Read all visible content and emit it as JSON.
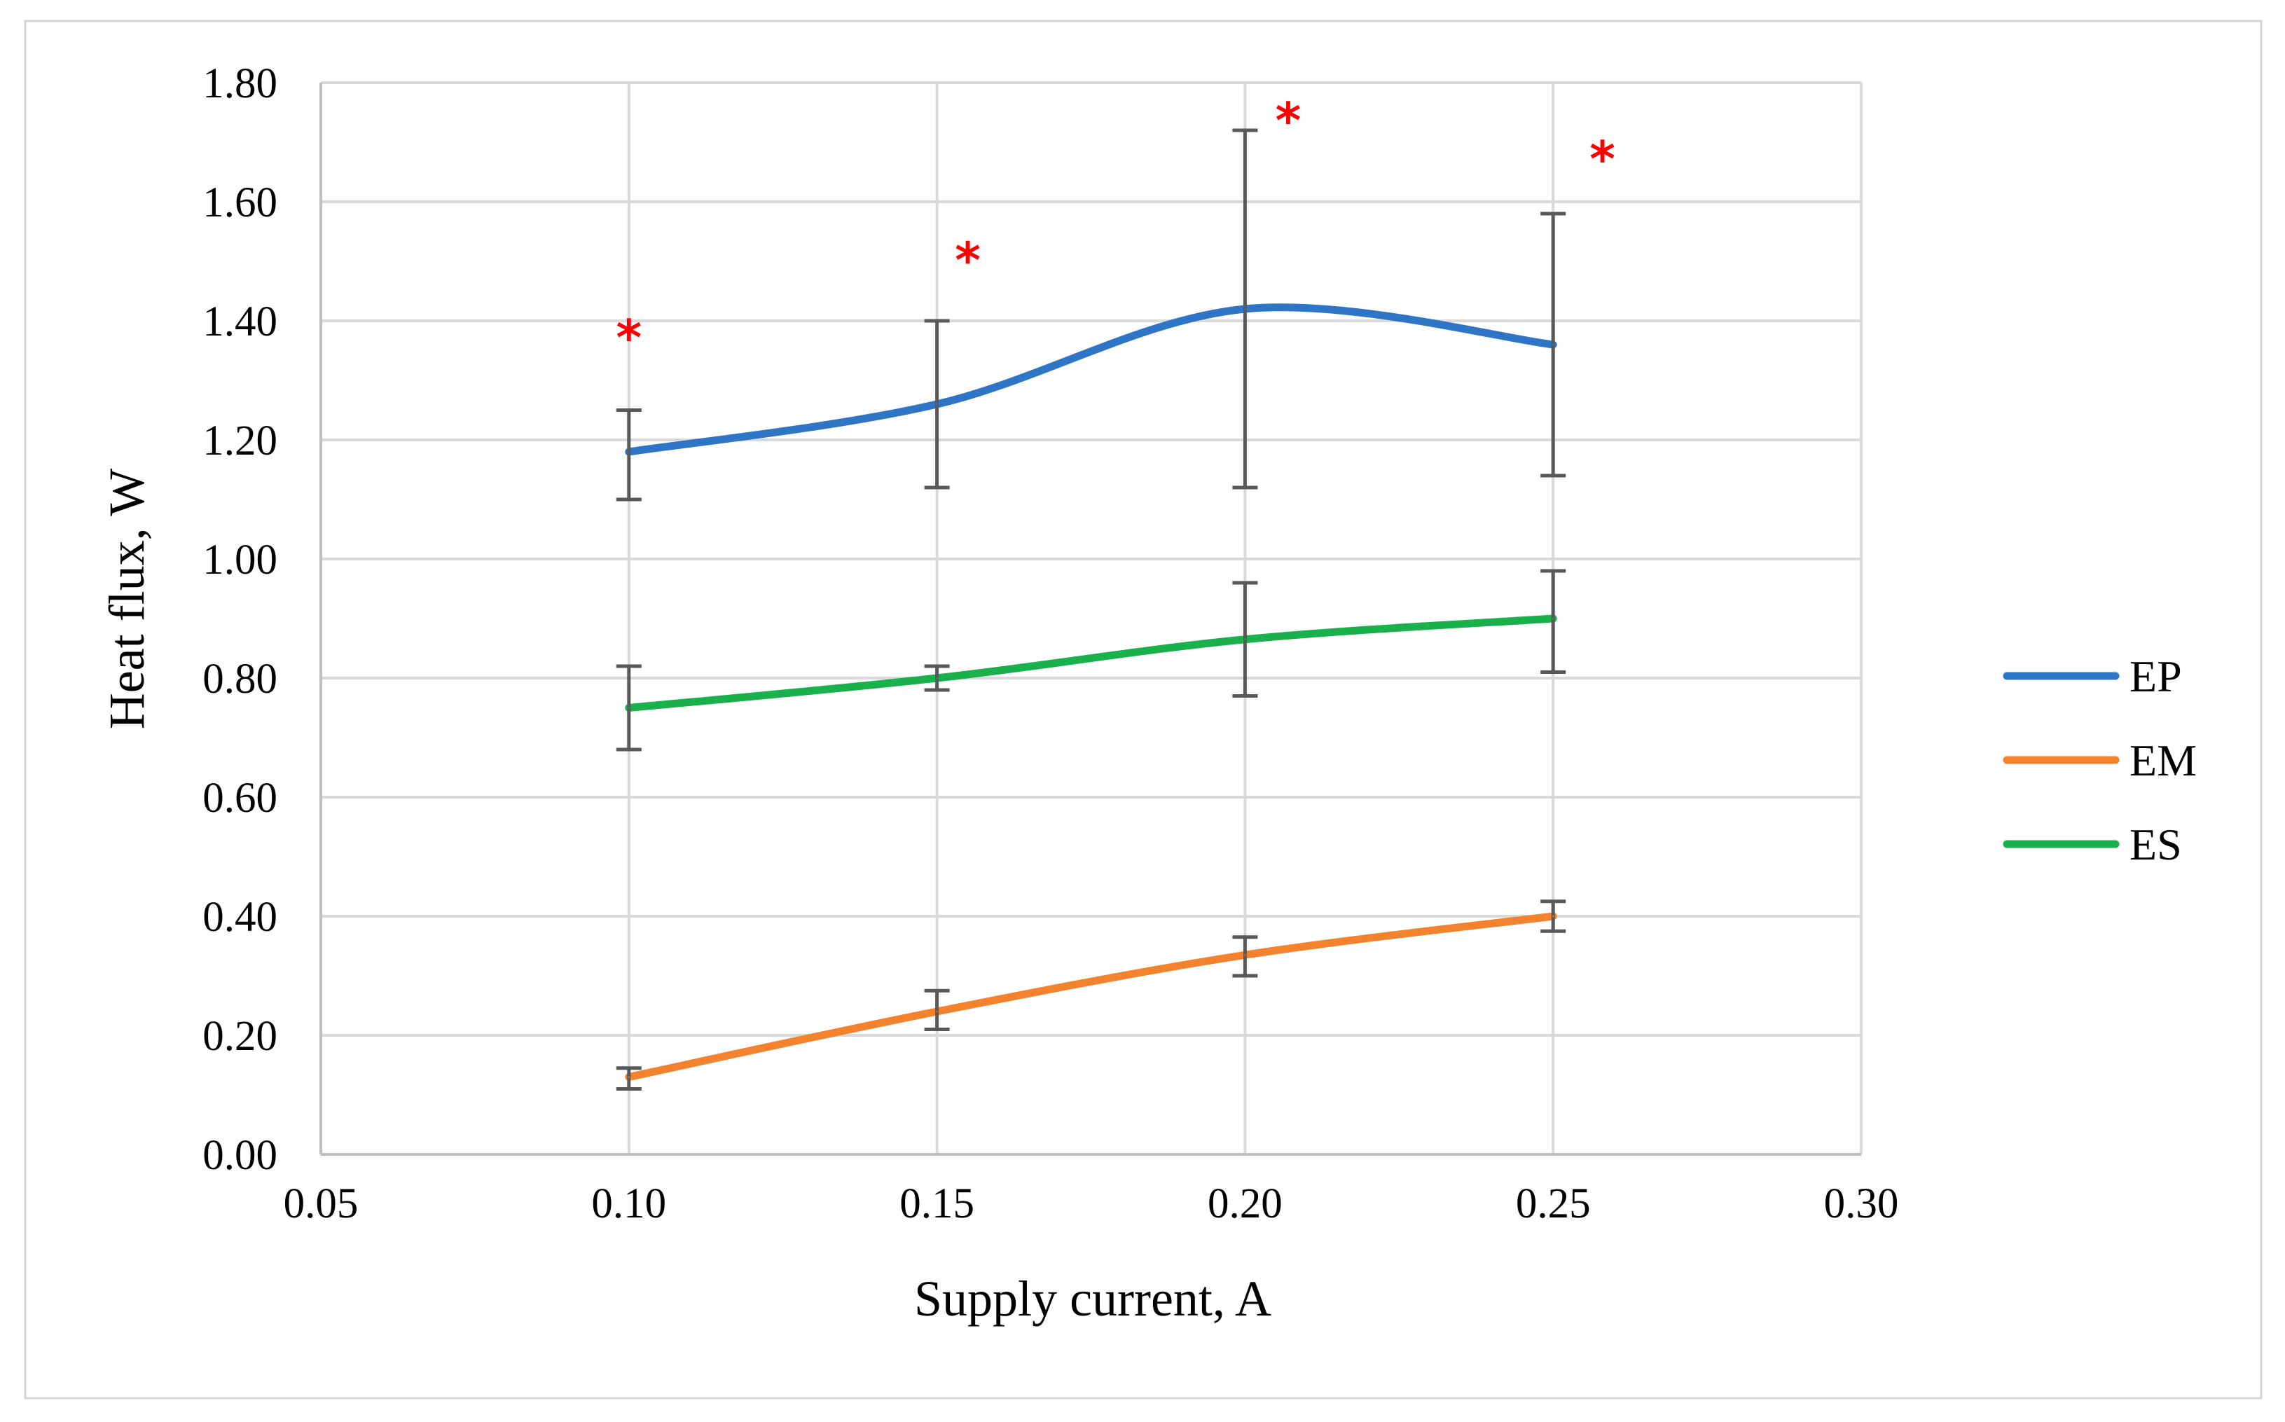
{
  "chart_data": {
    "type": "line",
    "title": "",
    "xlabel": "Supply current, A",
    "ylabel": "Heat flux, W",
    "xlim": [
      0.05,
      0.3
    ],
    "ylim": [
      0.0,
      1.8
    ],
    "x_ticks": [
      "0.05",
      "0.10",
      "0.15",
      "0.20",
      "0.25",
      "0.30"
    ],
    "y_ticks": [
      "0.00",
      "0.20",
      "0.40",
      "0.60",
      "0.80",
      "1.00",
      "1.20",
      "1.40",
      "1.60",
      "1.80"
    ],
    "grid": true,
    "legend_position": "right",
    "series": [
      {
        "name": "EP",
        "color": "#2E75C6",
        "x": [
          0.1,
          0.15,
          0.2,
          0.25
        ],
        "values": [
          1.18,
          1.26,
          1.42,
          1.36
        ],
        "error_low": [
          1.1,
          1.12,
          1.12,
          1.14
        ],
        "error_high": [
          1.25,
          1.4,
          1.72,
          1.58
        ]
      },
      {
        "name": "EM",
        "color": "#F2822E",
        "x": [
          0.1,
          0.15,
          0.2,
          0.25
        ],
        "values": [
          0.13,
          0.24,
          0.335,
          0.4
        ],
        "error_low": [
          0.11,
          0.21,
          0.3,
          0.375
        ],
        "error_high": [
          0.145,
          0.275,
          0.365,
          0.425
        ]
      },
      {
        "name": "ES",
        "color": "#1AB04B",
        "x": [
          0.1,
          0.15,
          0.2,
          0.25
        ],
        "values": [
          0.75,
          0.8,
          0.865,
          0.9
        ],
        "error_low": [
          0.68,
          0.78,
          0.77,
          0.81
        ],
        "error_high": [
          0.82,
          0.82,
          0.96,
          0.98
        ]
      }
    ],
    "annotations": [
      {
        "text": "*",
        "x": 0.1,
        "y": 1.39,
        "color": "#FF0000"
      },
      {
        "text": "*",
        "x": 0.155,
        "y": 1.52,
        "color": "#FF0000"
      },
      {
        "text": "*",
        "x": 0.207,
        "y": 1.755,
        "color": "#FF0000"
      },
      {
        "text": "*",
        "x": 0.258,
        "y": 1.69,
        "color": "#FF0000"
      }
    ]
  }
}
